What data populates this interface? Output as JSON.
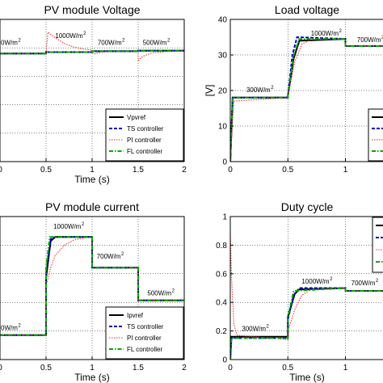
{
  "chart_data": [
    {
      "id": "tl",
      "type": "line",
      "title": "PV module Voltage",
      "xlabel": "Time (s)",
      "ylabel": "",
      "xlim": [
        0,
        2
      ],
      "ylim": [
        0,
        5
      ],
      "xticks": [
        "0",
        "0.5",
        "1",
        "1.5",
        "2"
      ],
      "xtick_values": [
        0,
        0.5,
        1,
        1.5,
        2
      ],
      "yticks": [],
      "ytick_values": [],
      "grid": true,
      "legend_position": "lower-right",
      "legend": [
        "Vpvref",
        "TS controller",
        "PI controller",
        "FL controller"
      ],
      "annotations": [
        {
          "text": "0W/m",
          "sup": "2",
          "x": 0.0,
          "y": 4.1
        },
        {
          "text": "1000W/m",
          "sup": "2",
          "x": 0.6,
          "y": 4.35
        },
        {
          "text": "700W/m",
          "sup": "2",
          "x": 1.06,
          "y": 4.1
        },
        {
          "text": "500W/m",
          "sup": "2",
          "x": 1.55,
          "y": 4.1
        }
      ],
      "series": [
        {
          "name": "Vpvref",
          "points": [
            [
              0,
              3.8
            ],
            [
              0.5,
              3.8
            ],
            [
              0.5,
              3.85
            ],
            [
              1.0,
              3.85
            ],
            [
              1.0,
              3.88
            ],
            [
              1.5,
              3.88
            ],
            [
              1.5,
              3.9
            ],
            [
              2.0,
              3.9
            ]
          ]
        },
        {
          "name": "TS controller",
          "points": [
            [
              0,
              3.8
            ],
            [
              0.5,
              3.8
            ],
            [
              0.5,
              3.85
            ],
            [
              1.0,
              3.85
            ],
            [
              1.0,
              3.88
            ],
            [
              1.5,
              3.88
            ],
            [
              1.5,
              3.9
            ],
            [
              2.0,
              3.9
            ]
          ]
        },
        {
          "name": "PI controller",
          "points": [
            [
              0,
              3.8
            ],
            [
              0.5,
              3.8
            ],
            [
              0.5,
              3.85
            ],
            [
              0.52,
              4.55
            ],
            [
              0.6,
              4.35
            ],
            [
              0.7,
              4.15
            ],
            [
              0.8,
              4.03
            ],
            [
              0.9,
              3.96
            ],
            [
              1.0,
              3.92
            ],
            [
              1.0,
              3.85
            ],
            [
              1.02,
              3.78
            ],
            [
              1.1,
              3.85
            ],
            [
              1.2,
              3.87
            ],
            [
              1.5,
              3.88
            ],
            [
              1.5,
              3.55
            ],
            [
              1.55,
              3.7
            ],
            [
              1.65,
              3.82
            ],
            [
              1.8,
              3.87
            ],
            [
              2.0,
              3.89
            ]
          ]
        },
        {
          "name": "FL controller",
          "points": [
            [
              0,
              3.8
            ],
            [
              0.5,
              3.8
            ],
            [
              0.5,
              3.85
            ],
            [
              1.0,
              3.85
            ],
            [
              1.0,
              3.88
            ],
            [
              1.5,
              3.88
            ],
            [
              1.5,
              3.9
            ],
            [
              2.0,
              3.9
            ]
          ]
        }
      ]
    },
    {
      "id": "tr",
      "type": "line",
      "title": "Load voltage",
      "xlabel": "",
      "ylabel": "[V]",
      "xlim": [
        0,
        2
      ],
      "ylim": [
        0,
        40
      ],
      "xticks": [
        "0",
        "0.5",
        "1"
      ],
      "xtick_values": [
        0,
        0.5,
        1
      ],
      "yticks": [
        "0",
        "10",
        "20",
        "30",
        "40"
      ],
      "ytick_values": [
        0,
        10,
        20,
        30,
        40
      ],
      "grid": true,
      "legend_position": "lower-right",
      "legend": [
        "Vpvref",
        "TS controller",
        "PI controller",
        "FL controller"
      ],
      "annotations": [
        {
          "text": "1000W/m",
          "sup": "2",
          "x": 0.7,
          "y": 35.5
        },
        {
          "text": "700W/m",
          "sup": "2",
          "x": 1.1,
          "y": 33.6
        },
        {
          "text": "300W/m",
          "sup": "2",
          "x": 0.14,
          "y": 19.6
        }
      ],
      "series": [
        {
          "name": "Vpvref",
          "points": [
            [
              0,
              0
            ],
            [
              0.02,
              18
            ],
            [
              0.5,
              18
            ],
            [
              0.5,
              18.5
            ],
            [
              0.55,
              29
            ],
            [
              0.6,
              34
            ],
            [
              1.0,
              34.5
            ],
            [
              1.0,
              32.5
            ],
            [
              2.0,
              32.5
            ]
          ]
        },
        {
          "name": "TS controller",
          "points": [
            [
              0,
              0
            ],
            [
              0.02,
              18
            ],
            [
              0.5,
              18
            ],
            [
              0.5,
              18.5
            ],
            [
              0.54,
              30
            ],
            [
              0.58,
              35
            ],
            [
              1.0,
              34.5
            ],
            [
              1.0,
              32.5
            ],
            [
              2.0,
              32.5
            ]
          ]
        },
        {
          "name": "PI controller",
          "points": [
            [
              0,
              0
            ],
            [
              0.03,
              17
            ],
            [
              0.5,
              18
            ],
            [
              0.5,
              18.5
            ],
            [
              0.56,
              28
            ],
            [
              0.62,
              33
            ],
            [
              0.7,
              34.3
            ],
            [
              1.0,
              34.5
            ],
            [
              1.0,
              32.5
            ],
            [
              2.0,
              32.5
            ]
          ]
        },
        {
          "name": "FL controller",
          "points": [
            [
              0,
              0
            ],
            [
              0.02,
              18
            ],
            [
              0.5,
              18
            ],
            [
              0.5,
              18.5
            ],
            [
              0.55,
              30
            ],
            [
              0.6,
              34.5
            ],
            [
              1.0,
              34.5
            ],
            [
              1.0,
              32.5
            ],
            [
              2.0,
              32.5
            ]
          ]
        }
      ]
    },
    {
      "id": "bl",
      "type": "line",
      "title": "PV module current",
      "xlabel": "Time (s)",
      "ylabel": "",
      "xlim": [
        0,
        2
      ],
      "ylim": [
        0,
        7
      ],
      "xticks": [
        "0",
        "0.5",
        "1",
        "1.5",
        "2"
      ],
      "xtick_values": [
        0,
        0.5,
        1,
        1.5,
        2
      ],
      "yticks": [],
      "ytick_values": [],
      "grid": true,
      "legend_position": "lower-right",
      "legend": [
        "Ipvref",
        "TS controller",
        "PI controller",
        "FL controller"
      ],
      "annotations": [
        {
          "text": "1000W/m",
          "sup": "2",
          "x": 0.58,
          "y": 6.4
        },
        {
          "text": "700W/m",
          "sup": "2",
          "x": 1.05,
          "y": 4.95
        },
        {
          "text": "500W/m",
          "sup": "2",
          "x": 1.6,
          "y": 3.15
        },
        {
          "text": "0W/m",
          "sup": "2",
          "x": 0.0,
          "y": 1.45
        }
      ],
      "series": [
        {
          "name": "Ipvref",
          "points": [
            [
              0,
              1.2
            ],
            [
              0.5,
              1.2
            ],
            [
              0.5,
              4.0
            ],
            [
              0.55,
              5.8
            ],
            [
              0.6,
              6.0
            ],
            [
              1.0,
              6.0
            ],
            [
              1.0,
              4.5
            ],
            [
              1.5,
              4.5
            ],
            [
              1.5,
              2.9
            ],
            [
              2.0,
              2.9
            ]
          ]
        },
        {
          "name": "TS controller",
          "points": [
            [
              0,
              1.2
            ],
            [
              0.5,
              1.2
            ],
            [
              0.5,
              4.2
            ],
            [
              0.55,
              5.9
            ],
            [
              0.6,
              6.0
            ],
            [
              1.0,
              6.0
            ],
            [
              1.0,
              4.5
            ],
            [
              1.5,
              4.5
            ],
            [
              1.5,
              2.9
            ],
            [
              2.0,
              2.9
            ]
          ]
        },
        {
          "name": "PI controller",
          "points": [
            [
              0,
              1.2
            ],
            [
              0.5,
              1.2
            ],
            [
              0.5,
              3.6
            ],
            [
              0.55,
              4.5
            ],
            [
              0.6,
              5.1
            ],
            [
              0.7,
              5.6
            ],
            [
              0.8,
              5.85
            ],
            [
              0.9,
              5.95
            ],
            [
              1.0,
              6.0
            ],
            [
              1.0,
              4.5
            ],
            [
              1.5,
              4.5
            ],
            [
              1.5,
              2.9
            ],
            [
              2.0,
              2.9
            ]
          ]
        },
        {
          "name": "FL controller",
          "points": [
            [
              0,
              1.2
            ],
            [
              0.5,
              1.2
            ],
            [
              0.5,
              4.5
            ],
            [
              0.54,
              6.0
            ],
            [
              1.0,
              6.0
            ],
            [
              1.0,
              4.5
            ],
            [
              1.5,
              4.5
            ],
            [
              1.5,
              2.9
            ],
            [
              2.0,
              2.9
            ]
          ]
        }
      ]
    },
    {
      "id": "br",
      "type": "line",
      "title": "Duty cycle",
      "xlabel": "Time (s)",
      "ylabel": "",
      "xlim": [
        0,
        2
      ],
      "ylim": [
        0,
        1
      ],
      "xticks": [
        "0",
        "0.5",
        "1"
      ],
      "xtick_values": [
        0,
        0.5,
        1
      ],
      "yticks": [
        "0",
        "0.2",
        "0.4",
        "0.6",
        "0.8",
        "1"
      ],
      "ytick_values": [
        0,
        0.2,
        0.4,
        0.6,
        0.8,
        1
      ],
      "grid": true,
      "legend_position": "upper-right",
      "legend": [
        "",
        "",
        "",
        ""
      ],
      "annotations": [
        {
          "text": "1000W/m",
          "sup": "2",
          "x": 0.62,
          "y": 0.53
        },
        {
          "text": "700W/m",
          "sup": "2",
          "x": 1.05,
          "y": 0.52
        },
        {
          "text": "300W/m",
          "sup": "2",
          "x": 0.1,
          "y": 0.2
        }
      ],
      "series": [
        {
          "name": "",
          "points": [
            [
              0,
              0.0
            ],
            [
              0.01,
              0.16
            ],
            [
              0.5,
              0.16
            ],
            [
              0.5,
              0.3
            ],
            [
              0.56,
              0.46
            ],
            [
              0.6,
              0.49
            ],
            [
              1.0,
              0.5
            ],
            [
              1.0,
              0.48
            ],
            [
              2.0,
              0.48
            ]
          ]
        },
        {
          "name": "",
          "points": [
            [
              0,
              0.0
            ],
            [
              0.01,
              0.15
            ],
            [
              0.5,
              0.15
            ],
            [
              0.5,
              0.28
            ],
            [
              0.55,
              0.45
            ],
            [
              0.6,
              0.5
            ],
            [
              1.0,
              0.5
            ],
            [
              1.0,
              0.48
            ],
            [
              2.0,
              0.48
            ]
          ]
        },
        {
          "name": "",
          "points": [
            [
              0,
              0.9
            ],
            [
              0.01,
              0.6
            ],
            [
              0.03,
              0.25
            ],
            [
              0.06,
              0.17
            ],
            [
              0.5,
              0.14
            ],
            [
              0.5,
              0.2
            ],
            [
              0.56,
              0.35
            ],
            [
              0.62,
              0.45
            ],
            [
              0.7,
              0.49
            ],
            [
              1.0,
              0.5
            ],
            [
              1.0,
              0.48
            ],
            [
              2.0,
              0.48
            ]
          ]
        },
        {
          "name": "",
          "points": [
            [
              0,
              0.0
            ],
            [
              0.01,
              0.15
            ],
            [
              0.5,
              0.15
            ],
            [
              0.5,
              0.3
            ],
            [
              0.55,
              0.48
            ],
            [
              1.0,
              0.5
            ],
            [
              1.0,
              0.48
            ],
            [
              2.0,
              0.48
            ]
          ]
        }
      ]
    }
  ]
}
